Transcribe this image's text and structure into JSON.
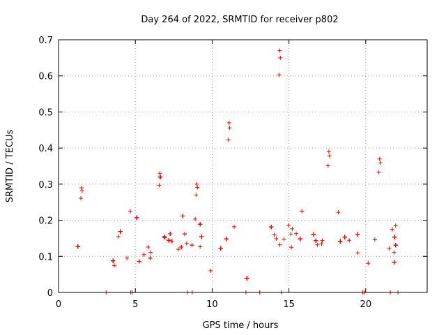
{
  "chart_data": {
    "type": "scatter",
    "title": "Day 264 of 2022, SRMTID for receiver p802",
    "xlabel": "GPS time / hours",
    "ylabel": "SRMTID / TECUs",
    "xlim": [
      0,
      24
    ],
    "ylim": [
      0,
      0.7
    ],
    "xticks": [
      0,
      5,
      10,
      15,
      20
    ],
    "yticks": [
      0,
      0.1,
      0.2,
      0.3,
      0.4,
      0.5,
      0.6,
      0.7
    ],
    "xtick_labels": [
      "0",
      "5",
      "10",
      "15",
      "20"
    ],
    "ytick_labels": [
      "0",
      "0.1",
      "0.2",
      "0.3",
      "0.4",
      "0.5",
      "0.6",
      "0.7"
    ],
    "grid": true,
    "marker": "+",
    "series": [
      {
        "name": "SRMTID p802",
        "color": "#ff0000",
        "x_range": [
          0,
          22.8
        ],
        "baseline_profile": [
          [
            0,
            0.1
          ],
          [
            1,
            0.1
          ],
          [
            2,
            0.11
          ],
          [
            3,
            0.11
          ],
          [
            4,
            0.11
          ],
          [
            5,
            0.13
          ],
          [
            6,
            0.13
          ],
          [
            7,
            0.14
          ],
          [
            8,
            0.13
          ],
          [
            9,
            0.14
          ],
          [
            10,
            0.14
          ],
          [
            11,
            0.16
          ],
          [
            12,
            0.13
          ],
          [
            13,
            0.12
          ],
          [
            14,
            0.13
          ],
          [
            15,
            0.15
          ],
          [
            16,
            0.14
          ],
          [
            17,
            0.14
          ],
          [
            18,
            0.14
          ],
          [
            19,
            0.12
          ],
          [
            20,
            0.12
          ],
          [
            21,
            0.13
          ],
          [
            22,
            0.13
          ],
          [
            22.8,
            0.12
          ]
        ],
        "peaks": [
          {
            "x": 1.5,
            "y": 0.29
          },
          {
            "x": 6.6,
            "y": 0.33
          },
          {
            "x": 9.0,
            "y": 0.3
          },
          {
            "x": 11.1,
            "y": 0.47
          },
          {
            "x": 14.4,
            "y": 0.67
          },
          {
            "x": 17.6,
            "y": 0.39
          },
          {
            "x": 20.9,
            "y": 0.37
          }
        ],
        "zero_points_x": [
          3.1,
          4.7,
          4.8,
          8.4,
          8.7,
          12.2,
          13.1,
          14.5,
          19.8,
          19.9,
          21.6,
          22.1
        ]
      }
    ]
  }
}
